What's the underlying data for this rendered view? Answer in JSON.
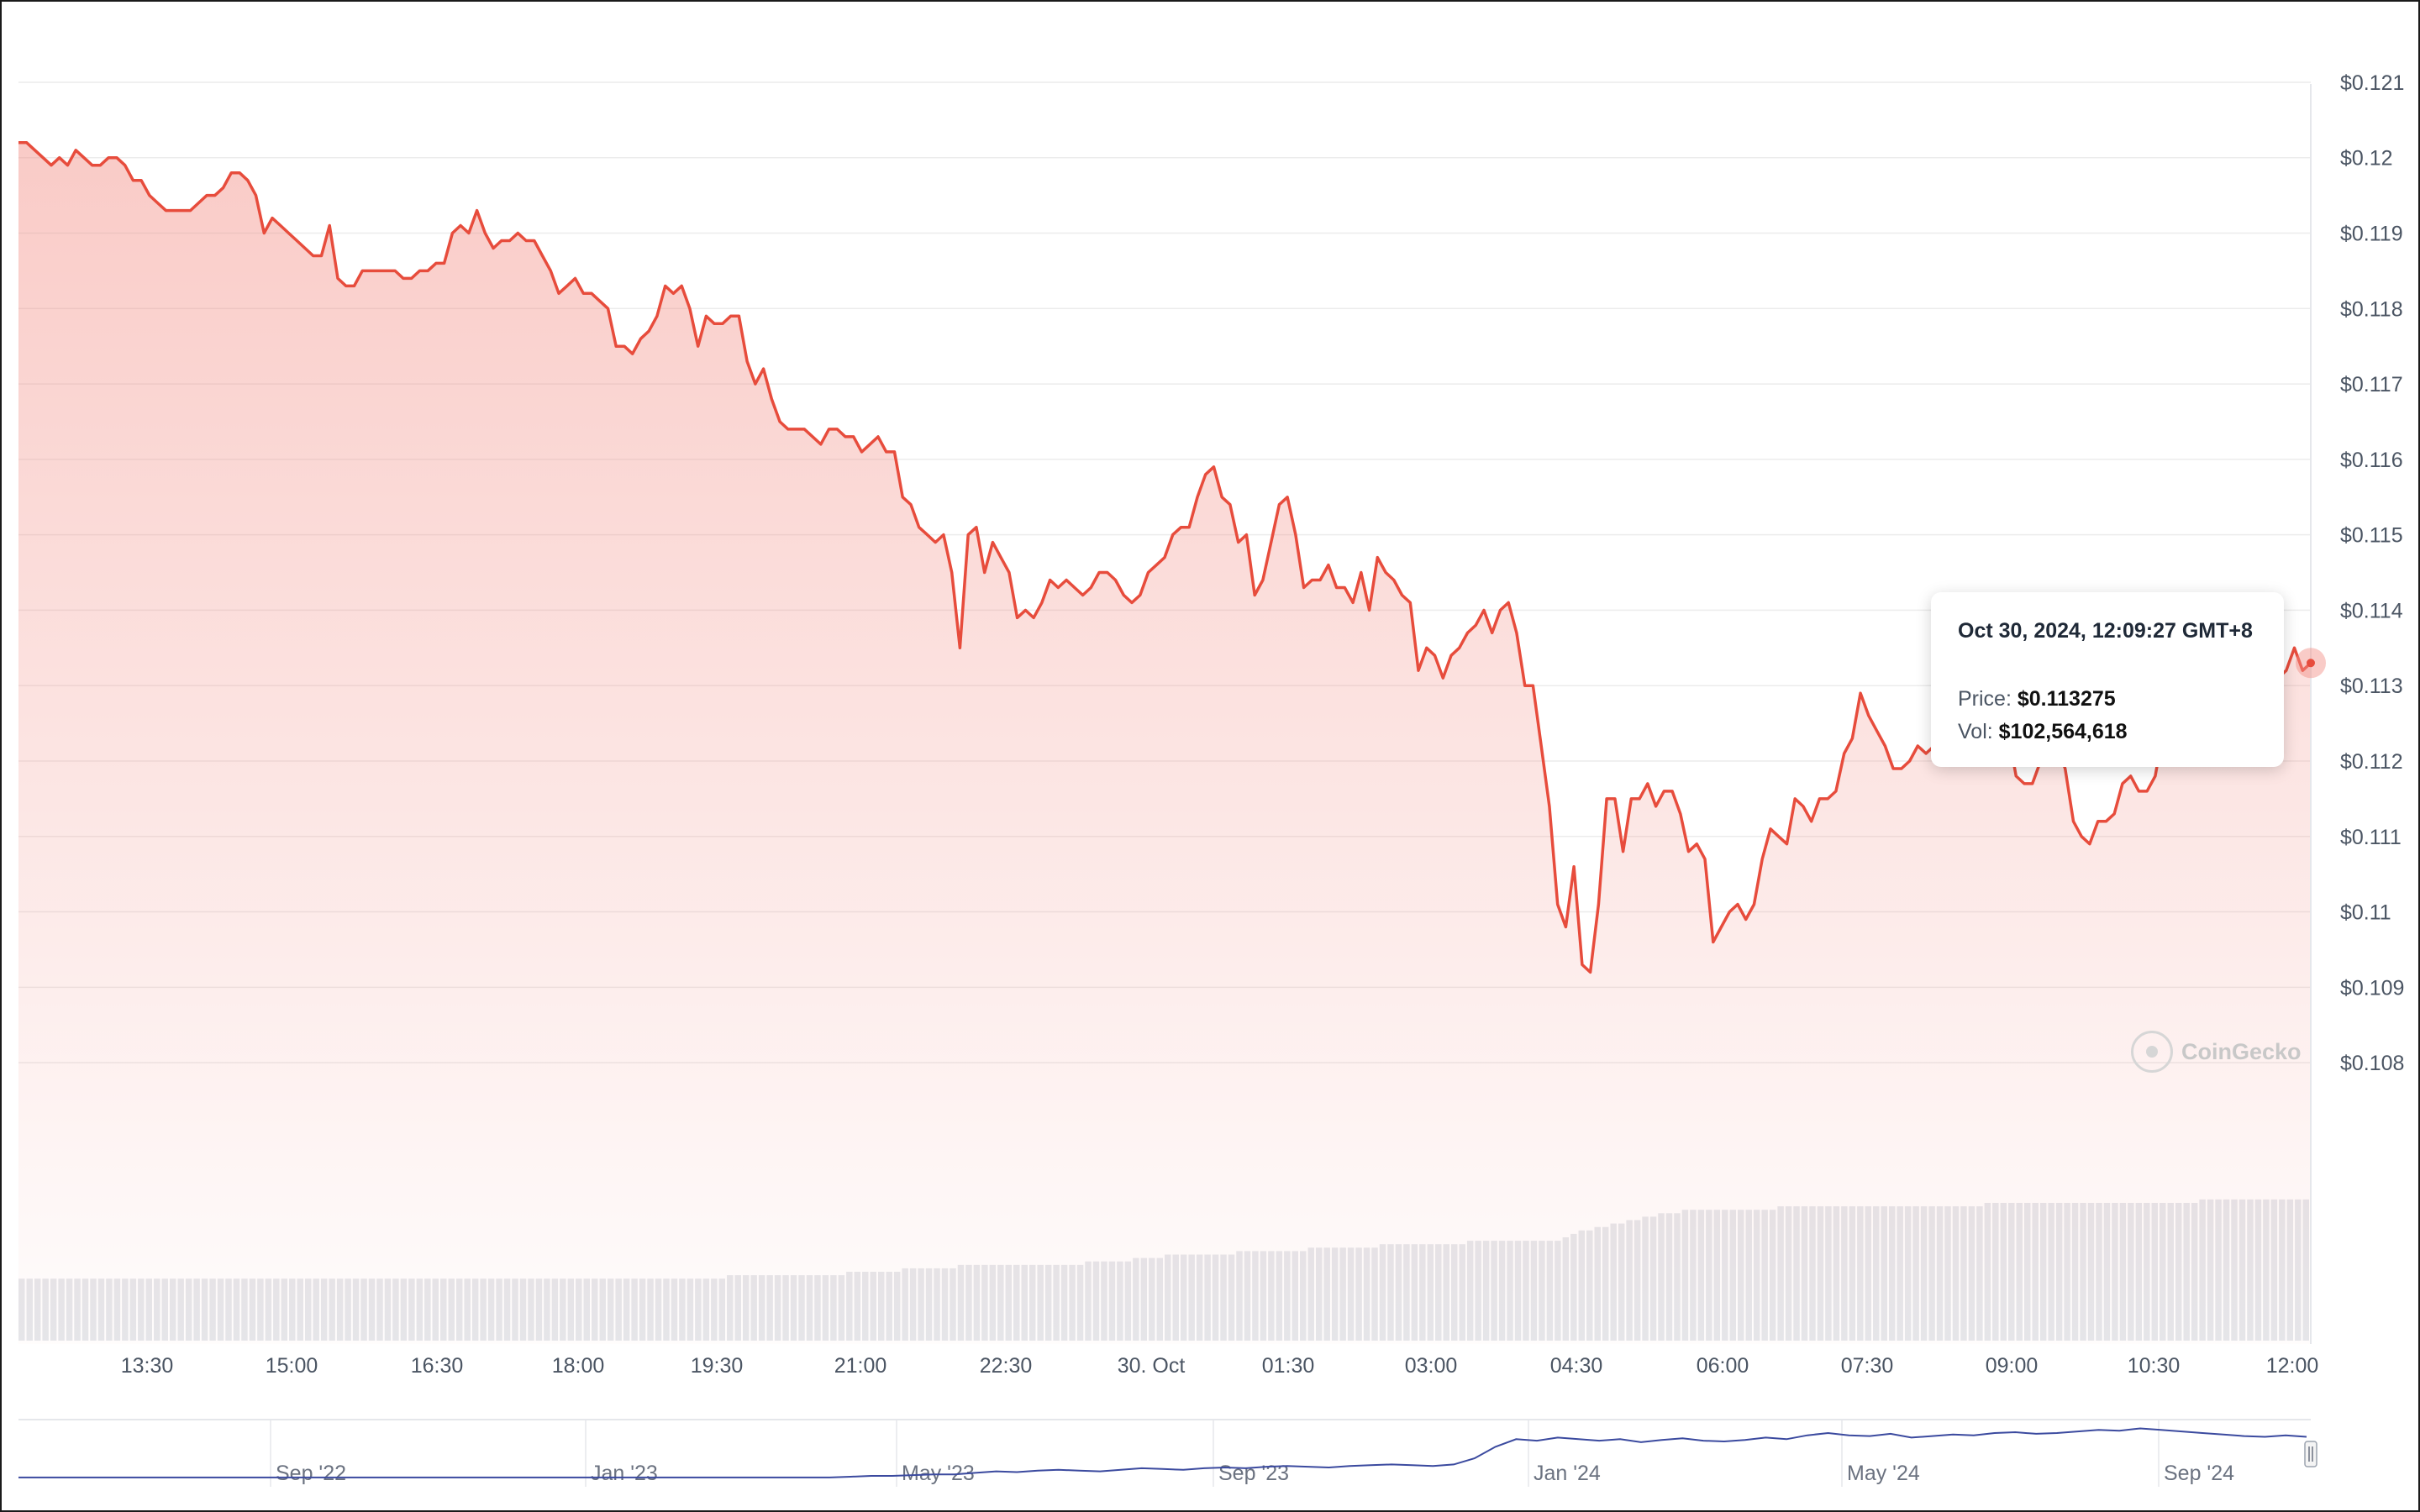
{
  "chart_data": {
    "type": "line",
    "y_axis": {
      "ticks": [
        "$0.121",
        "$0.12",
        "$0.119",
        "$0.118",
        "$0.117",
        "$0.116",
        "$0.115",
        "$0.114",
        "$0.113",
        "$0.112",
        "$0.111",
        "$0.11",
        "$0.109",
        "$0.108"
      ],
      "ylim": [
        0.1075,
        0.1212
      ],
      "position": "right",
      "grid": true
    },
    "x_axis": {
      "ticks": [
        "13:30",
        "15:00",
        "16:30",
        "18:00",
        "19:30",
        "21:00",
        "22:30",
        "30. Oct",
        "01:30",
        "03:00",
        "04:30",
        "06:00",
        "07:30",
        "09:00",
        "10:30",
        "12:00"
      ]
    },
    "series": [
      {
        "type": "line",
        "color": "#e74c3c",
        "fill": "red-gradient",
        "y": [
          0.1202,
          0.1202,
          0.1201,
          0.12,
          0.1199,
          0.12,
          0.1199,
          0.1201,
          0.12,
          0.1199,
          0.1199,
          0.12,
          0.12,
          0.1199,
          0.1197,
          0.1197,
          0.1195,
          0.1194,
          0.1193,
          0.1193,
          0.1193,
          0.1193,
          0.1194,
          0.1195,
          0.1195,
          0.1196,
          0.1198,
          0.1198,
          0.1197,
          0.1195,
          0.119,
          0.1192,
          0.1191,
          0.119,
          0.1189,
          0.1188,
          0.1187,
          0.1187,
          0.1191,
          0.1184,
          0.1183,
          0.1183,
          0.1185,
          0.1185,
          0.1185,
          0.1185,
          0.1185,
          0.1184,
          0.1184,
          0.1185,
          0.1185,
          0.1186,
          0.1186,
          0.119,
          0.1191,
          0.119,
          0.1193,
          0.119,
          0.1188,
          0.1189,
          0.1189,
          0.119,
          0.1189,
          0.1189,
          0.1187,
          0.1185,
          0.1182,
          0.1183,
          0.1184,
          0.1182,
          0.1182,
          0.1181,
          0.118,
          0.1175,
          0.1175,
          0.1174,
          0.1176,
          0.1177,
          0.1179,
          0.1183,
          0.1182,
          0.1183,
          0.118,
          0.1175,
          0.1179,
          0.1178,
          0.1178,
          0.1179,
          0.1179,
          0.1173,
          0.117,
          0.1172,
          0.1168,
          0.1165,
          0.1164,
          0.1164,
          0.1164,
          0.1163,
          0.1162,
          0.1164,
          0.1164,
          0.1163,
          0.1163,
          0.1161,
          0.1162,
          0.1163,
          0.1161,
          0.1161,
          0.1155,
          0.1154,
          0.1151,
          0.115,
          0.1149,
          0.115,
          0.1145,
          0.1135,
          0.115,
          0.1151,
          0.1145,
          0.1149,
          0.1147,
          0.1145,
          0.1139,
          0.114,
          0.1139,
          0.1141,
          0.1144,
          0.1143,
          0.1144,
          0.1143,
          0.1142,
          0.1143,
          0.1145,
          0.1145,
          0.1144,
          0.1142,
          0.1141,
          0.1142,
          0.1145,
          0.1146,
          0.1147,
          0.115,
          0.1151,
          0.1151,
          0.1155,
          0.1158,
          0.1159,
          0.1155,
          0.1154,
          0.1149,
          0.115,
          0.1142,
          0.1144,
          0.1149,
          0.1154,
          0.1155,
          0.115,
          0.1143,
          0.1144,
          0.1144,
          0.1146,
          0.1143,
          0.1143,
          0.1141,
          0.1145,
          0.114,
          0.1147,
          0.1145,
          0.1144,
          0.1142,
          0.1141,
          0.1132,
          0.1135,
          0.1134,
          0.1131,
          0.1134,
          0.1135,
          0.1137,
          0.1138,
          0.114,
          0.1137,
          0.114,
          0.1141,
          0.1137,
          0.113,
          0.113,
          0.1122,
          0.1114,
          0.1101,
          0.1098,
          0.1106,
          0.1093,
          0.1092,
          0.1101,
          0.1115,
          0.1115,
          0.1108,
          0.1115,
          0.1115,
          0.1117,
          0.1114,
          0.1116,
          0.1116,
          0.1113,
          0.1108,
          0.1109,
          0.1107,
          0.1096,
          0.1098,
          0.11,
          0.1101,
          0.1099,
          0.1101,
          0.1107,
          0.1111,
          0.111,
          0.1109,
          0.1115,
          0.1114,
          0.1112,
          0.1115,
          0.1115,
          0.1116,
          0.1121,
          0.1123,
          0.1129,
          0.1126,
          0.1124,
          0.1122,
          0.1119,
          0.1119,
          0.112,
          0.1122,
          0.1121,
          0.1122,
          0.1122,
          0.1123,
          0.1122,
          0.1126,
          0.1126,
          0.1125,
          0.1124,
          0.1123,
          0.1124,
          0.1118,
          0.1117,
          0.1117,
          0.112,
          0.1121,
          0.1122,
          0.1119,
          0.1112,
          0.111,
          0.1109,
          0.1112,
          0.1112,
          0.1113,
          0.1117,
          0.1118,
          0.1116,
          0.1116,
          0.1118,
          0.1124,
          0.1126,
          0.1128,
          0.113,
          0.1128,
          0.113,
          0.1132,
          0.1131,
          0.1133,
          0.1134,
          0.1133,
          0.1132,
          0.1133,
          0.1132,
          0.1131,
          0.1132,
          0.1135,
          0.1132,
          0.1133
        ]
      },
      {
        "type": "bar",
        "name": "volume",
        "color": "#e5e7eb",
        "values": [
          18,
          18,
          18,
          18,
          18,
          18,
          18,
          18,
          18,
          18,
          18,
          18,
          18,
          18,
          18,
          18,
          18,
          18,
          18,
          18,
          18,
          18,
          18,
          18,
          18,
          18,
          18,
          18,
          18,
          18,
          18,
          18,
          18,
          18,
          18,
          18,
          18,
          18,
          18,
          18,
          18,
          18,
          18,
          18,
          18,
          18,
          18,
          18,
          18,
          18,
          18,
          18,
          18,
          18,
          18,
          18,
          18,
          18,
          18,
          18,
          18,
          18,
          18,
          18,
          18,
          18,
          18,
          18,
          18,
          18,
          18,
          18,
          18,
          18,
          18,
          18,
          18,
          18,
          18,
          18,
          18,
          18,
          18,
          18,
          18,
          18,
          18,
          18,
          18,
          19,
          19,
          19,
          19,
          19,
          19,
          19,
          19,
          19,
          19,
          19,
          19,
          19,
          19,
          19,
          20,
          20,
          20,
          20,
          20,
          20,
          20,
          21,
          21,
          21,
          21,
          21,
          21,
          21,
          22,
          22,
          22,
          22,
          22,
          22,
          22,
          22,
          22,
          22,
          22,
          22,
          22,
          22,
          22,
          22,
          23,
          23,
          23,
          23,
          23,
          23,
          24,
          24,
          24,
          24,
          25,
          25,
          25,
          25,
          25,
          25,
          25,
          25,
          25,
          26,
          26,
          26,
          26,
          26,
          26,
          26,
          26,
          26,
          27,
          27,
          27,
          27,
          27,
          27,
          27,
          27,
          27,
          28,
          28,
          28,
          28,
          28,
          28,
          28,
          28,
          28,
          28,
          28,
          29,
          29,
          29,
          29,
          29,
          29,
          29,
          29,
          29,
          29,
          29,
          29,
          30,
          31,
          32,
          32,
          33,
          33,
          34,
          34,
          35,
          35,
          36,
          36,
          37,
          37,
          37,
          38,
          38,
          38,
          38,
          38,
          38,
          38,
          38,
          38,
          38,
          38,
          38,
          39,
          39,
          39,
          39,
          39,
          39,
          39,
          39,
          39,
          39,
          39,
          39,
          39,
          39,
          39,
          39,
          39,
          39,
          39,
          39,
          39,
          39,
          39,
          39,
          39,
          39,
          40,
          40,
          40,
          40,
          40,
          40,
          40,
          40,
          40,
          40,
          40,
          40,
          40,
          40,
          40,
          40,
          40,
          40,
          40,
          40,
          40,
          40,
          40,
          40,
          40,
          40,
          40,
          41,
          41,
          41,
          41,
          41,
          41,
          41,
          41,
          41,
          41,
          41,
          41,
          41,
          41
        ]
      }
    ],
    "tooltip": {
      "date": "Oct 30, 2024, 12:09:27 GMT+8",
      "price_label": "Price:",
      "price_value": "$0.113275",
      "vol_label": "Vol:",
      "vol_value": "$102,564,618"
    },
    "navigator": {
      "labels": [
        "Sep '22",
        "Jan '23",
        "May '23",
        "Sep '23",
        "Jan '24",
        "May '24",
        "Sep '24"
      ],
      "series_color": "#3b4a9f",
      "values": [
        0.06,
        0.06,
        0.06,
        0.06,
        0.06,
        0.06,
        0.06,
        0.06,
        0.06,
        0.06,
        0.06,
        0.06,
        0.06,
        0.06,
        0.06,
        0.06,
        0.06,
        0.06,
        0.06,
        0.06,
        0.06,
        0.06,
        0.06,
        0.06,
        0.06,
        0.06,
        0.06,
        0.06,
        0.06,
        0.06,
        0.06,
        0.06,
        0.06,
        0.06,
        0.06,
        0.06,
        0.06,
        0.06,
        0.06,
        0.06,
        0.061,
        0.062,
        0.062,
        0.063,
        0.064,
        0.064,
        0.066,
        0.068,
        0.067,
        0.069,
        0.07,
        0.069,
        0.068,
        0.07,
        0.072,
        0.071,
        0.07,
        0.072,
        0.073,
        0.072,
        0.074,
        0.075,
        0.074,
        0.073,
        0.075,
        0.076,
        0.077,
        0.076,
        0.075,
        0.077,
        0.085,
        0.1,
        0.11,
        0.108,
        0.112,
        0.11,
        0.108,
        0.11,
        0.106,
        0.109,
        0.111,
        0.108,
        0.107,
        0.109,
        0.112,
        0.11,
        0.115,
        0.118,
        0.115,
        0.114,
        0.117,
        0.112,
        0.114,
        0.116,
        0.115,
        0.118,
        0.119,
        0.117,
        0.118,
        0.12,
        0.122,
        0.121,
        0.124,
        0.122,
        0.12,
        0.118,
        0.116,
        0.114,
        0.113,
        0.115,
        0.113
      ]
    },
    "watermark": "CoinGecko"
  }
}
